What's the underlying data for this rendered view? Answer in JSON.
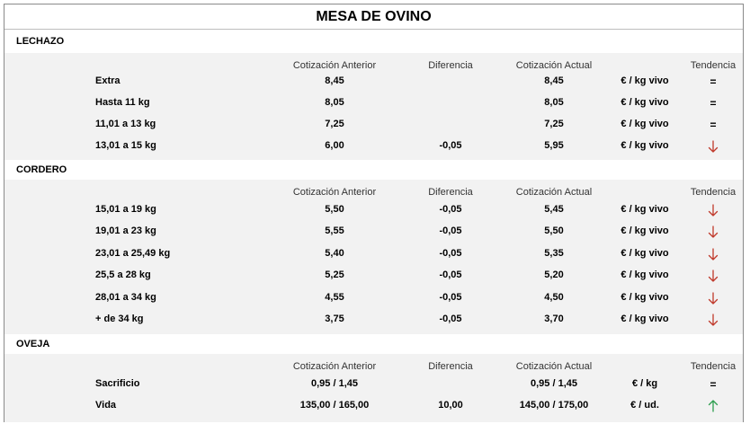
{
  "title": "MESA DE OVINO",
  "headers": {
    "prev": "Cotización Anterior",
    "diff": "Diferencia",
    "curr": "Cotización Actual",
    "trend": "Tendencia"
  },
  "colors": {
    "down": "#c0392b",
    "up": "#2e9e4f"
  },
  "sections": [
    {
      "name": "LECHAZO",
      "rows": [
        {
          "name": "Extra",
          "prev": "8,45",
          "diff": "",
          "curr": "8,45",
          "unit": "€ / kg vivo",
          "trend": "equal",
          "trend_symbol": "="
        },
        {
          "name": "Hasta 11 kg",
          "prev": "8,05",
          "diff": "",
          "curr": "8,05",
          "unit": "€ / kg vivo",
          "trend": "equal",
          "trend_symbol": "="
        },
        {
          "name": "11,01 a 13 kg",
          "prev": "7,25",
          "diff": "",
          "curr": "7,25",
          "unit": "€ / kg vivo",
          "trend": "equal",
          "trend_symbol": "="
        },
        {
          "name": "13,01 a 15 kg",
          "prev": "6,00",
          "diff": "-0,05",
          "curr": "5,95",
          "unit": "€ / kg vivo",
          "trend": "down",
          "trend_symbol": ""
        }
      ]
    },
    {
      "name": "CORDERO",
      "rows": [
        {
          "name": "15,01 a 19 kg",
          "prev": "5,50",
          "diff": "-0,05",
          "curr": "5,45",
          "unit": "€ / kg vivo",
          "trend": "down",
          "trend_symbol": ""
        },
        {
          "name": "19,01 a 23 kg",
          "prev": "5,55",
          "diff": "-0,05",
          "curr": "5,50",
          "unit": "€ / kg vivo",
          "trend": "down",
          "trend_symbol": ""
        },
        {
          "name": "23,01 a 25,49 kg",
          "prev": "5,40",
          "diff": "-0,05",
          "curr": "5,35",
          "unit": "€ / kg vivo",
          "trend": "down",
          "trend_symbol": ""
        },
        {
          "name": "25,5 a 28 kg",
          "prev": "5,25",
          "diff": "-0,05",
          "curr": "5,20",
          "unit": "€ / kg vivo",
          "trend": "down",
          "trend_symbol": ""
        },
        {
          "name": "28,01 a 34 kg",
          "prev": "4,55",
          "diff": "-0,05",
          "curr": "4,50",
          "unit": "€ / kg vivo",
          "trend": "down",
          "trend_symbol": ""
        },
        {
          "name": "+ de 34 kg",
          "prev": "3,75",
          "diff": "-0,05",
          "curr": "3,70",
          "unit": "€ / kg vivo",
          "trend": "down",
          "trend_symbol": ""
        }
      ]
    },
    {
      "name": "OVEJA",
      "rows": [
        {
          "name": "Sacrificio",
          "prev": "0,95 / 1,45",
          "diff": "",
          "curr": "0,95 / 1,45",
          "unit": "€ / kg",
          "trend": "equal",
          "trend_symbol": "="
        },
        {
          "name": "Vida",
          "prev": "135,00 / 165,00",
          "diff": "10,00",
          "curr": "145,00 / 175,00",
          "unit": "€ / ud.",
          "trend": "up",
          "trend_symbol": ""
        }
      ]
    }
  ]
}
